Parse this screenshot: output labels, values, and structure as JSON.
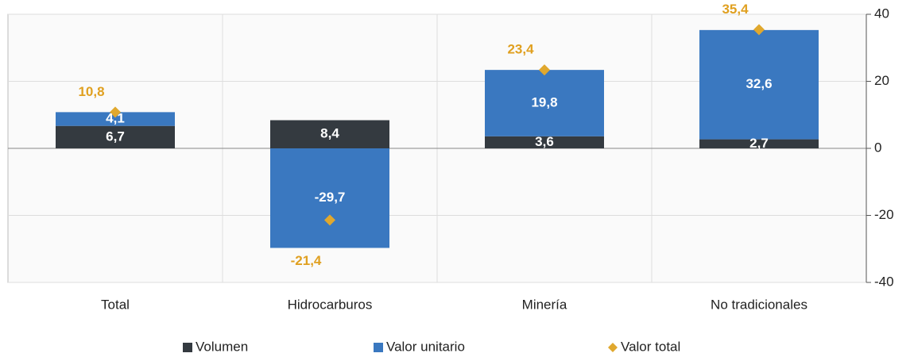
{
  "chart_data": {
    "type": "bar",
    "stacked": true,
    "categories": [
      "Total",
      "Hidrocarburos",
      "Minería",
      "No tradicionales"
    ],
    "series": [
      {
        "name": "Volumen",
        "color": "#343a40",
        "values": [
          6.7,
          8.4,
          3.6,
          2.7
        ],
        "value_labels": [
          "6,7",
          "8,4",
          "3,6",
          "2,7"
        ]
      },
      {
        "name": "Valor unitario",
        "color": "#3a78c0",
        "values": [
          4.1,
          -29.7,
          19.8,
          32.6
        ],
        "value_labels": [
          "4,1",
          "-29,7",
          "19,8",
          "32,6"
        ]
      },
      {
        "name": "Valor total",
        "type": "scatter",
        "color": "#e0a82e",
        "values": [
          10.8,
          -21.4,
          23.4,
          35.4
        ],
        "value_labels": [
          "10,8",
          "-21,4",
          "23,4",
          "35,4"
        ]
      }
    ],
    "ylim": [
      -40,
      40
    ],
    "yticks": [
      -40,
      -20,
      0,
      20,
      40
    ],
    "grid": true
  }
}
